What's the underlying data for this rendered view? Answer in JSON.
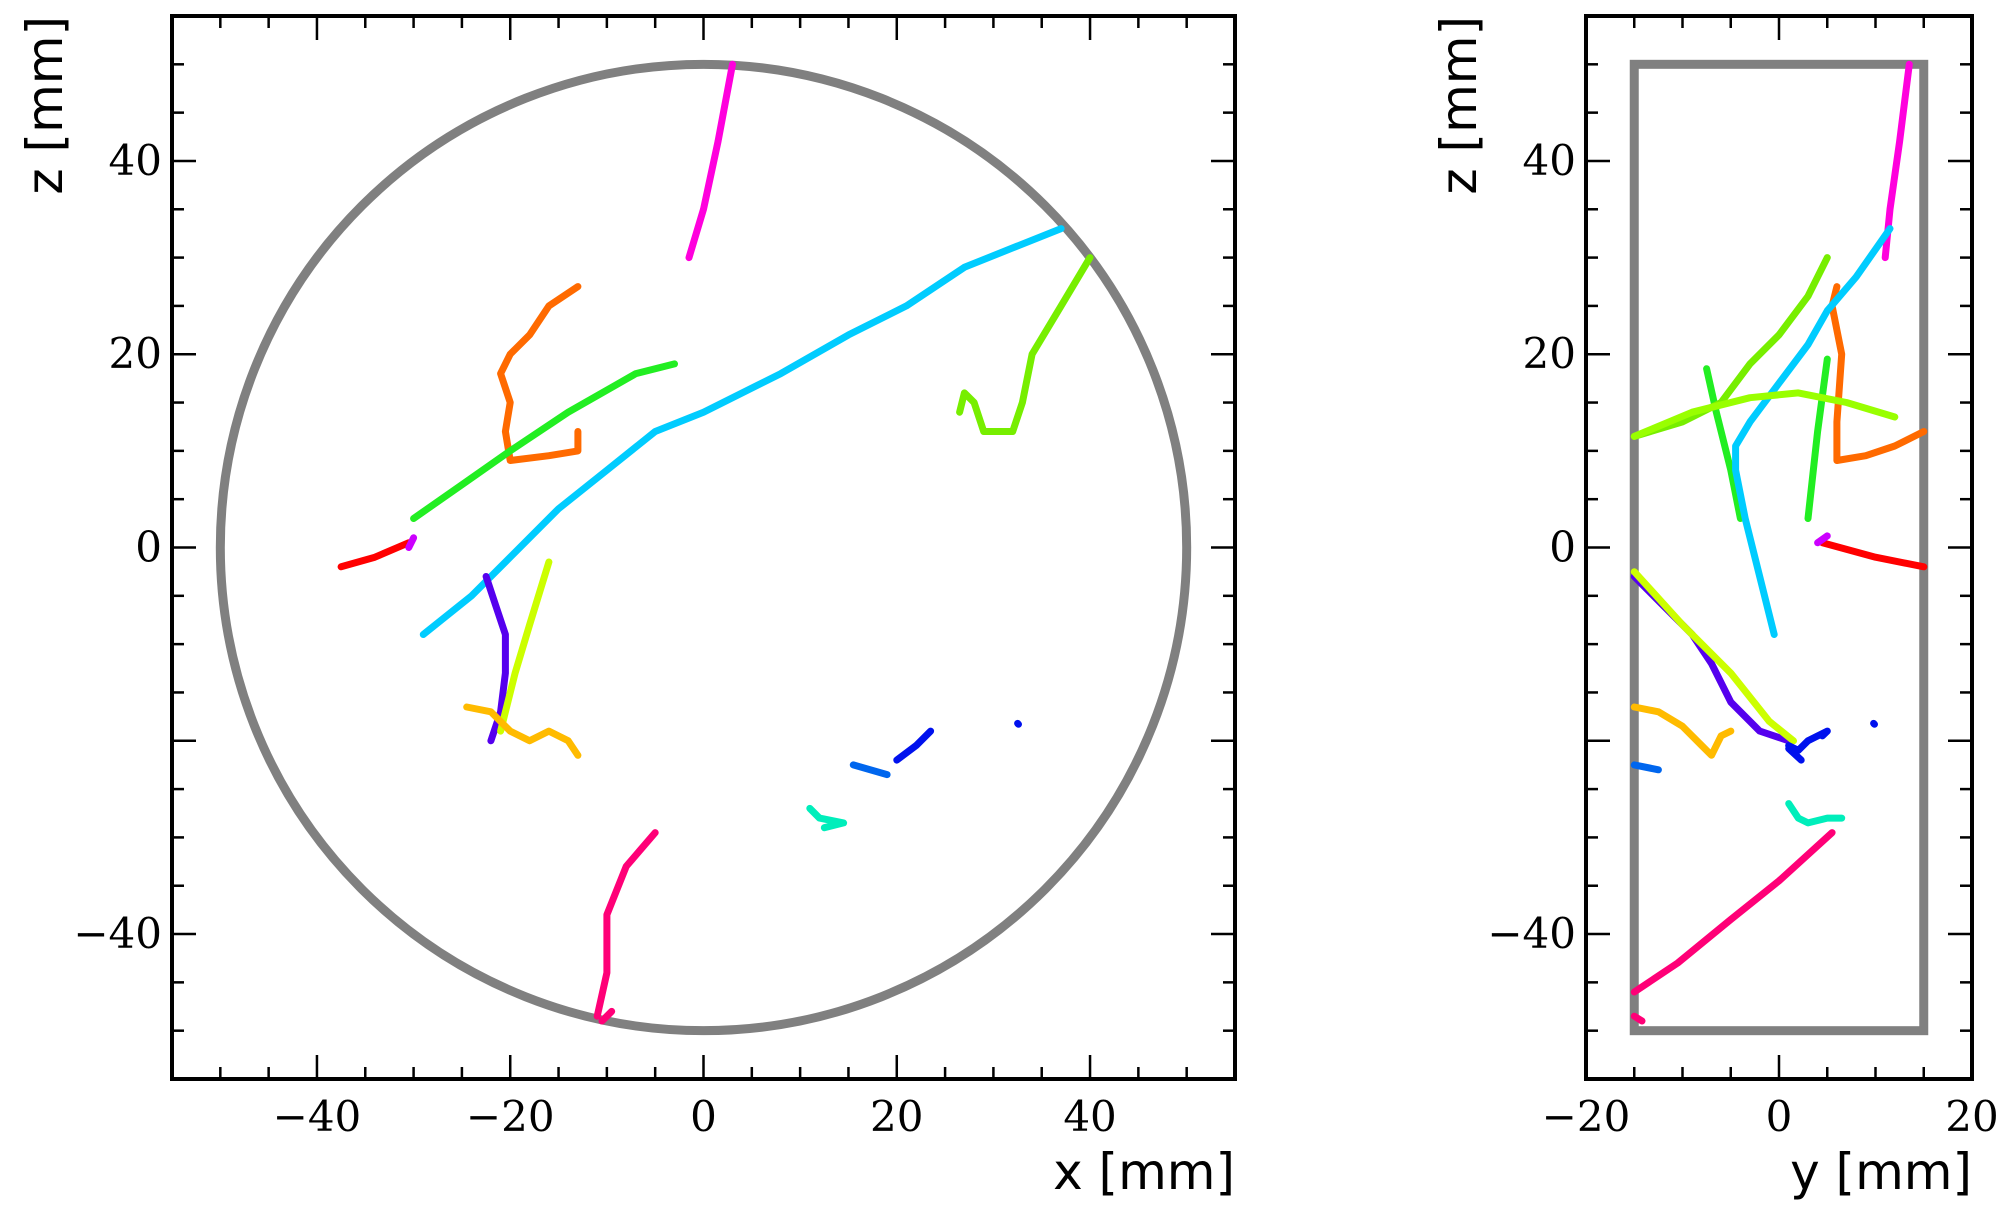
{
  "chart_data": [
    {
      "type": "line",
      "panel": "x-z",
      "xlabel": "x [mm]",
      "ylabel": "z [mm]",
      "xlim": [
        -55,
        55
      ],
      "ylim": [
        -55,
        55
      ],
      "xticks": [
        -40,
        -20,
        0,
        20,
        40
      ],
      "yticks": [
        -40,
        0,
        20,
        40
      ],
      "xtick_labels": [
        "−40",
        "−20",
        "0",
        "20",
        "40"
      ],
      "ytick_labels": [
        "−40",
        "0",
        "20",
        "40"
      ],
      "boundary": {
        "shape": "circle",
        "center": [
          0,
          0
        ],
        "radius": 50,
        "color": "#808080"
      },
      "series": [
        {
          "color": "#ff00dd",
          "points": [
            [
              3,
              50
            ],
            [
              1.5,
              42
            ],
            [
              0,
              35
            ],
            [
              -1.5,
              30
            ]
          ]
        },
        {
          "color": "#ff6a00",
          "points": [
            [
              -13,
              27
            ],
            [
              -16,
              25
            ],
            [
              -18,
              22
            ],
            [
              -20,
              20
            ],
            [
              -21,
              18
            ],
            [
              -20,
              15
            ],
            [
              -20.5,
              12
            ],
            [
              -20,
              9
            ],
            [
              -16,
              9.5
            ],
            [
              -13,
              10
            ],
            [
              -13,
              12
            ]
          ]
        },
        {
          "color": "#22ee22",
          "points": [
            [
              -30,
              3
            ],
            [
              -25,
              6.5
            ],
            [
              -20,
              10
            ],
            [
              -14,
              14
            ],
            [
              -7,
              18
            ],
            [
              -3,
              19
            ]
          ]
        },
        {
          "color": "#00ccff",
          "points": [
            [
              -29,
              -9
            ],
            [
              -24,
              -5
            ],
            [
              -20,
              -1
            ],
            [
              -15,
              4
            ],
            [
              -10,
              8
            ],
            [
              -5,
              12
            ],
            [
              0,
              14
            ],
            [
              8,
              18
            ],
            [
              15,
              22
            ],
            [
              21,
              25
            ],
            [
              27,
              29
            ],
            [
              32,
              31
            ],
            [
              37,
              33
            ]
          ]
        },
        {
          "color": "#77ee00",
          "points": [
            [
              40,
              30
            ],
            [
              37,
              25
            ],
            [
              34,
              20
            ],
            [
              33,
              15
            ],
            [
              32,
              12
            ],
            [
              29,
              12
            ],
            [
              28,
              15
            ],
            [
              27,
              16
            ],
            [
              26.5,
              14
            ]
          ]
        },
        {
          "color": "#ff0000",
          "points": [
            [
              -37.5,
              -2
            ],
            [
              -34,
              -1
            ],
            [
              -30.5,
              0.5
            ]
          ]
        },
        {
          "color": "#cc00ff",
          "points": [
            [
              -30.5,
              0
            ],
            [
              -30,
              1
            ]
          ]
        },
        {
          "color": "#5500ee",
          "points": [
            [
              -22.5,
              -3
            ],
            [
              -21.5,
              -6
            ],
            [
              -20.5,
              -9
            ],
            [
              -20.5,
              -13
            ],
            [
              -21,
              -17
            ],
            [
              -22,
              -20
            ]
          ]
        },
        {
          "color": "#ccff00",
          "points": [
            [
              -16,
              -1.5
            ],
            [
              -18,
              -8
            ],
            [
              -19.5,
              -13
            ],
            [
              -21,
              -19
            ]
          ]
        },
        {
          "color": "#ffbb00",
          "points": [
            [
              -24.5,
              -16.5
            ],
            [
              -22,
              -17
            ],
            [
              -20,
              -19
            ],
            [
              -18,
              -20
            ],
            [
              -16,
              -19
            ],
            [
              -14,
              -20
            ],
            [
              -13,
              -21.5
            ]
          ]
        },
        {
          "color": "#0011ee",
          "points": [
            [
              20,
              -22
            ],
            [
              22,
              -20.5
            ],
            [
              23.5,
              -19
            ]
          ]
        },
        {
          "color": "#0066ee",
          "points": [
            [
              15.5,
              -22.5
            ],
            [
              19,
              -23.5
            ]
          ]
        },
        {
          "color": "#0011ee",
          "points": [
            [
              32.5,
              -18.2
            ],
            [
              32.6,
              -18.3
            ]
          ]
        },
        {
          "color": "#00eebb",
          "points": [
            [
              11,
              -27
            ],
            [
              12,
              -28
            ],
            [
              14.5,
              -28.5
            ],
            [
              12.5,
              -29
            ]
          ]
        },
        {
          "color": "#ff0077",
          "points": [
            [
              -5,
              -29.5
            ],
            [
              -8,
              -33
            ],
            [
              -10,
              -38
            ],
            [
              -10,
              -44
            ],
            [
              -11,
              -48.5
            ]
          ]
        },
        {
          "color": "#ff0077",
          "points": [
            [
              -9.5,
              -48
            ],
            [
              -10.5,
              -49
            ]
          ]
        }
      ]
    },
    {
      "type": "line",
      "panel": "y-z",
      "xlabel": "y [mm]",
      "ylabel": "z [mm]",
      "xlim": [
        -20,
        20
      ],
      "ylim": [
        -55,
        55
      ],
      "xticks": [
        -20,
        0,
        20
      ],
      "yticks": [
        -40,
        0,
        20,
        40
      ],
      "xtick_labels": [
        "−20",
        "0",
        "20"
      ],
      "ytick_labels": [
        "−40",
        "0",
        "20",
        "40"
      ],
      "boundary": {
        "shape": "rectangle",
        "x": [
          -15,
          15
        ],
        "y": [
          -50,
          50
        ],
        "color": "#808080"
      },
      "series": [
        {
          "color": "#ff00dd",
          "points": [
            [
              13.5,
              50
            ],
            [
              12.5,
              42
            ],
            [
              11.5,
              35
            ],
            [
              11,
              30
            ]
          ]
        },
        {
          "color": "#ff6a00",
          "points": [
            [
              15,
              12
            ],
            [
              12,
              10.5
            ],
            [
              9,
              9.5
            ],
            [
              6,
              9
            ],
            [
              6,
              13
            ],
            [
              6.5,
              20
            ],
            [
              5.5,
              25
            ],
            [
              6,
              27
            ]
          ]
        },
        {
          "color": "#22ee22",
          "points": [
            [
              -7.5,
              18.5
            ],
            [
              -6.5,
              14
            ],
            [
              -5,
              8
            ],
            [
              -4,
              3
            ]
          ]
        },
        {
          "color": "#22ee22",
          "points": [
            [
              3,
              3
            ],
            [
              4,
              12
            ],
            [
              5,
              19.5
            ]
          ]
        },
        {
          "color": "#00ccff",
          "points": [
            [
              -0.5,
              -9
            ],
            [
              -2,
              -3
            ],
            [
              -3.5,
              3
            ],
            [
              -4.5,
              8
            ],
            [
              -4.5,
              10.5
            ],
            [
              -3,
              13
            ],
            [
              0,
              17
            ],
            [
              3,
              21
            ],
            [
              5,
              24.5
            ],
            [
              8,
              28
            ],
            [
              11.5,
              33
            ]
          ]
        },
        {
          "color": "#77ee00",
          "points": [
            [
              -15,
              11.5
            ],
            [
              -10,
              13
            ],
            [
              -6,
              15
            ],
            [
              -3,
              19
            ],
            [
              0,
              22
            ],
            [
              3,
              26
            ],
            [
              5,
              30
            ]
          ]
        },
        {
          "color": "#99ff00",
          "points": [
            [
              -15,
              11.5
            ],
            [
              -9,
              14
            ],
            [
              -3,
              15.5
            ],
            [
              2,
              16
            ],
            [
              7,
              15
            ],
            [
              12,
              13.5
            ]
          ]
        },
        {
          "color": "#ff0000",
          "points": [
            [
              4.5,
              0.5
            ],
            [
              10,
              -1
            ],
            [
              15,
              -2
            ]
          ]
        },
        {
          "color": "#cc00ff",
          "points": [
            [
              4,
              0.5
            ],
            [
              5,
              1.2
            ]
          ]
        },
        {
          "color": "#5500ee",
          "points": [
            [
              -15,
              -3
            ],
            [
              -12,
              -6
            ],
            [
              -9,
              -9
            ],
            [
              -7,
              -12
            ],
            [
              -5,
              -16
            ],
            [
              -2,
              -19
            ],
            [
              1,
              -20
            ]
          ]
        },
        {
          "color": "#ccff00",
          "points": [
            [
              -15,
              -2.5
            ],
            [
              -10,
              -8
            ],
            [
              -5,
              -13
            ],
            [
              -1,
              -18
            ],
            [
              1.5,
              -20
            ]
          ]
        },
        {
          "color": "#ffbb00",
          "points": [
            [
              -15,
              -16.5
            ],
            [
              -12.5,
              -17
            ],
            [
              -10,
              -18.5
            ],
            [
              -8,
              -20.5
            ],
            [
              -7,
              -21.5
            ],
            [
              -6,
              -19.5
            ],
            [
              -5,
              -19
            ]
          ]
        },
        {
          "color": "#0011ee",
          "points": [
            [
              1,
              -20.5
            ],
            [
              2,
              -21
            ],
            [
              3,
              -20
            ],
            [
              5,
              -19
            ],
            [
              4.5,
              -19.5
            ]
          ]
        },
        {
          "color": "#0011ee",
          "points": [
            [
              1,
              -20.8
            ],
            [
              2.3,
              -22
            ]
          ]
        },
        {
          "color": "#0066ee",
          "points": [
            [
              -15,
              -22.5
            ],
            [
              -12.5,
              -23
            ]
          ]
        },
        {
          "color": "#0011ee",
          "points": [
            [
              9.8,
              -18.2
            ],
            [
              9.9,
              -18.3
            ]
          ]
        },
        {
          "color": "#00eebb",
          "points": [
            [
              1,
              -26.5
            ],
            [
              2,
              -28
            ],
            [
              3,
              -28.5
            ],
            [
              5,
              -28
            ],
            [
              6.5,
              -28
            ]
          ]
        },
        {
          "color": "#ff0077",
          "points": [
            [
              -15,
              -46
            ],
            [
              -10.5,
              -43
            ],
            [
              -5,
              -38.5
            ],
            [
              0,
              -34.5
            ],
            [
              5.5,
              -29.5
            ]
          ]
        },
        {
          "color": "#ff0077",
          "points": [
            [
              -15,
              -48.5
            ],
            [
              -14.2,
              -49
            ]
          ]
        }
      ]
    }
  ]
}
